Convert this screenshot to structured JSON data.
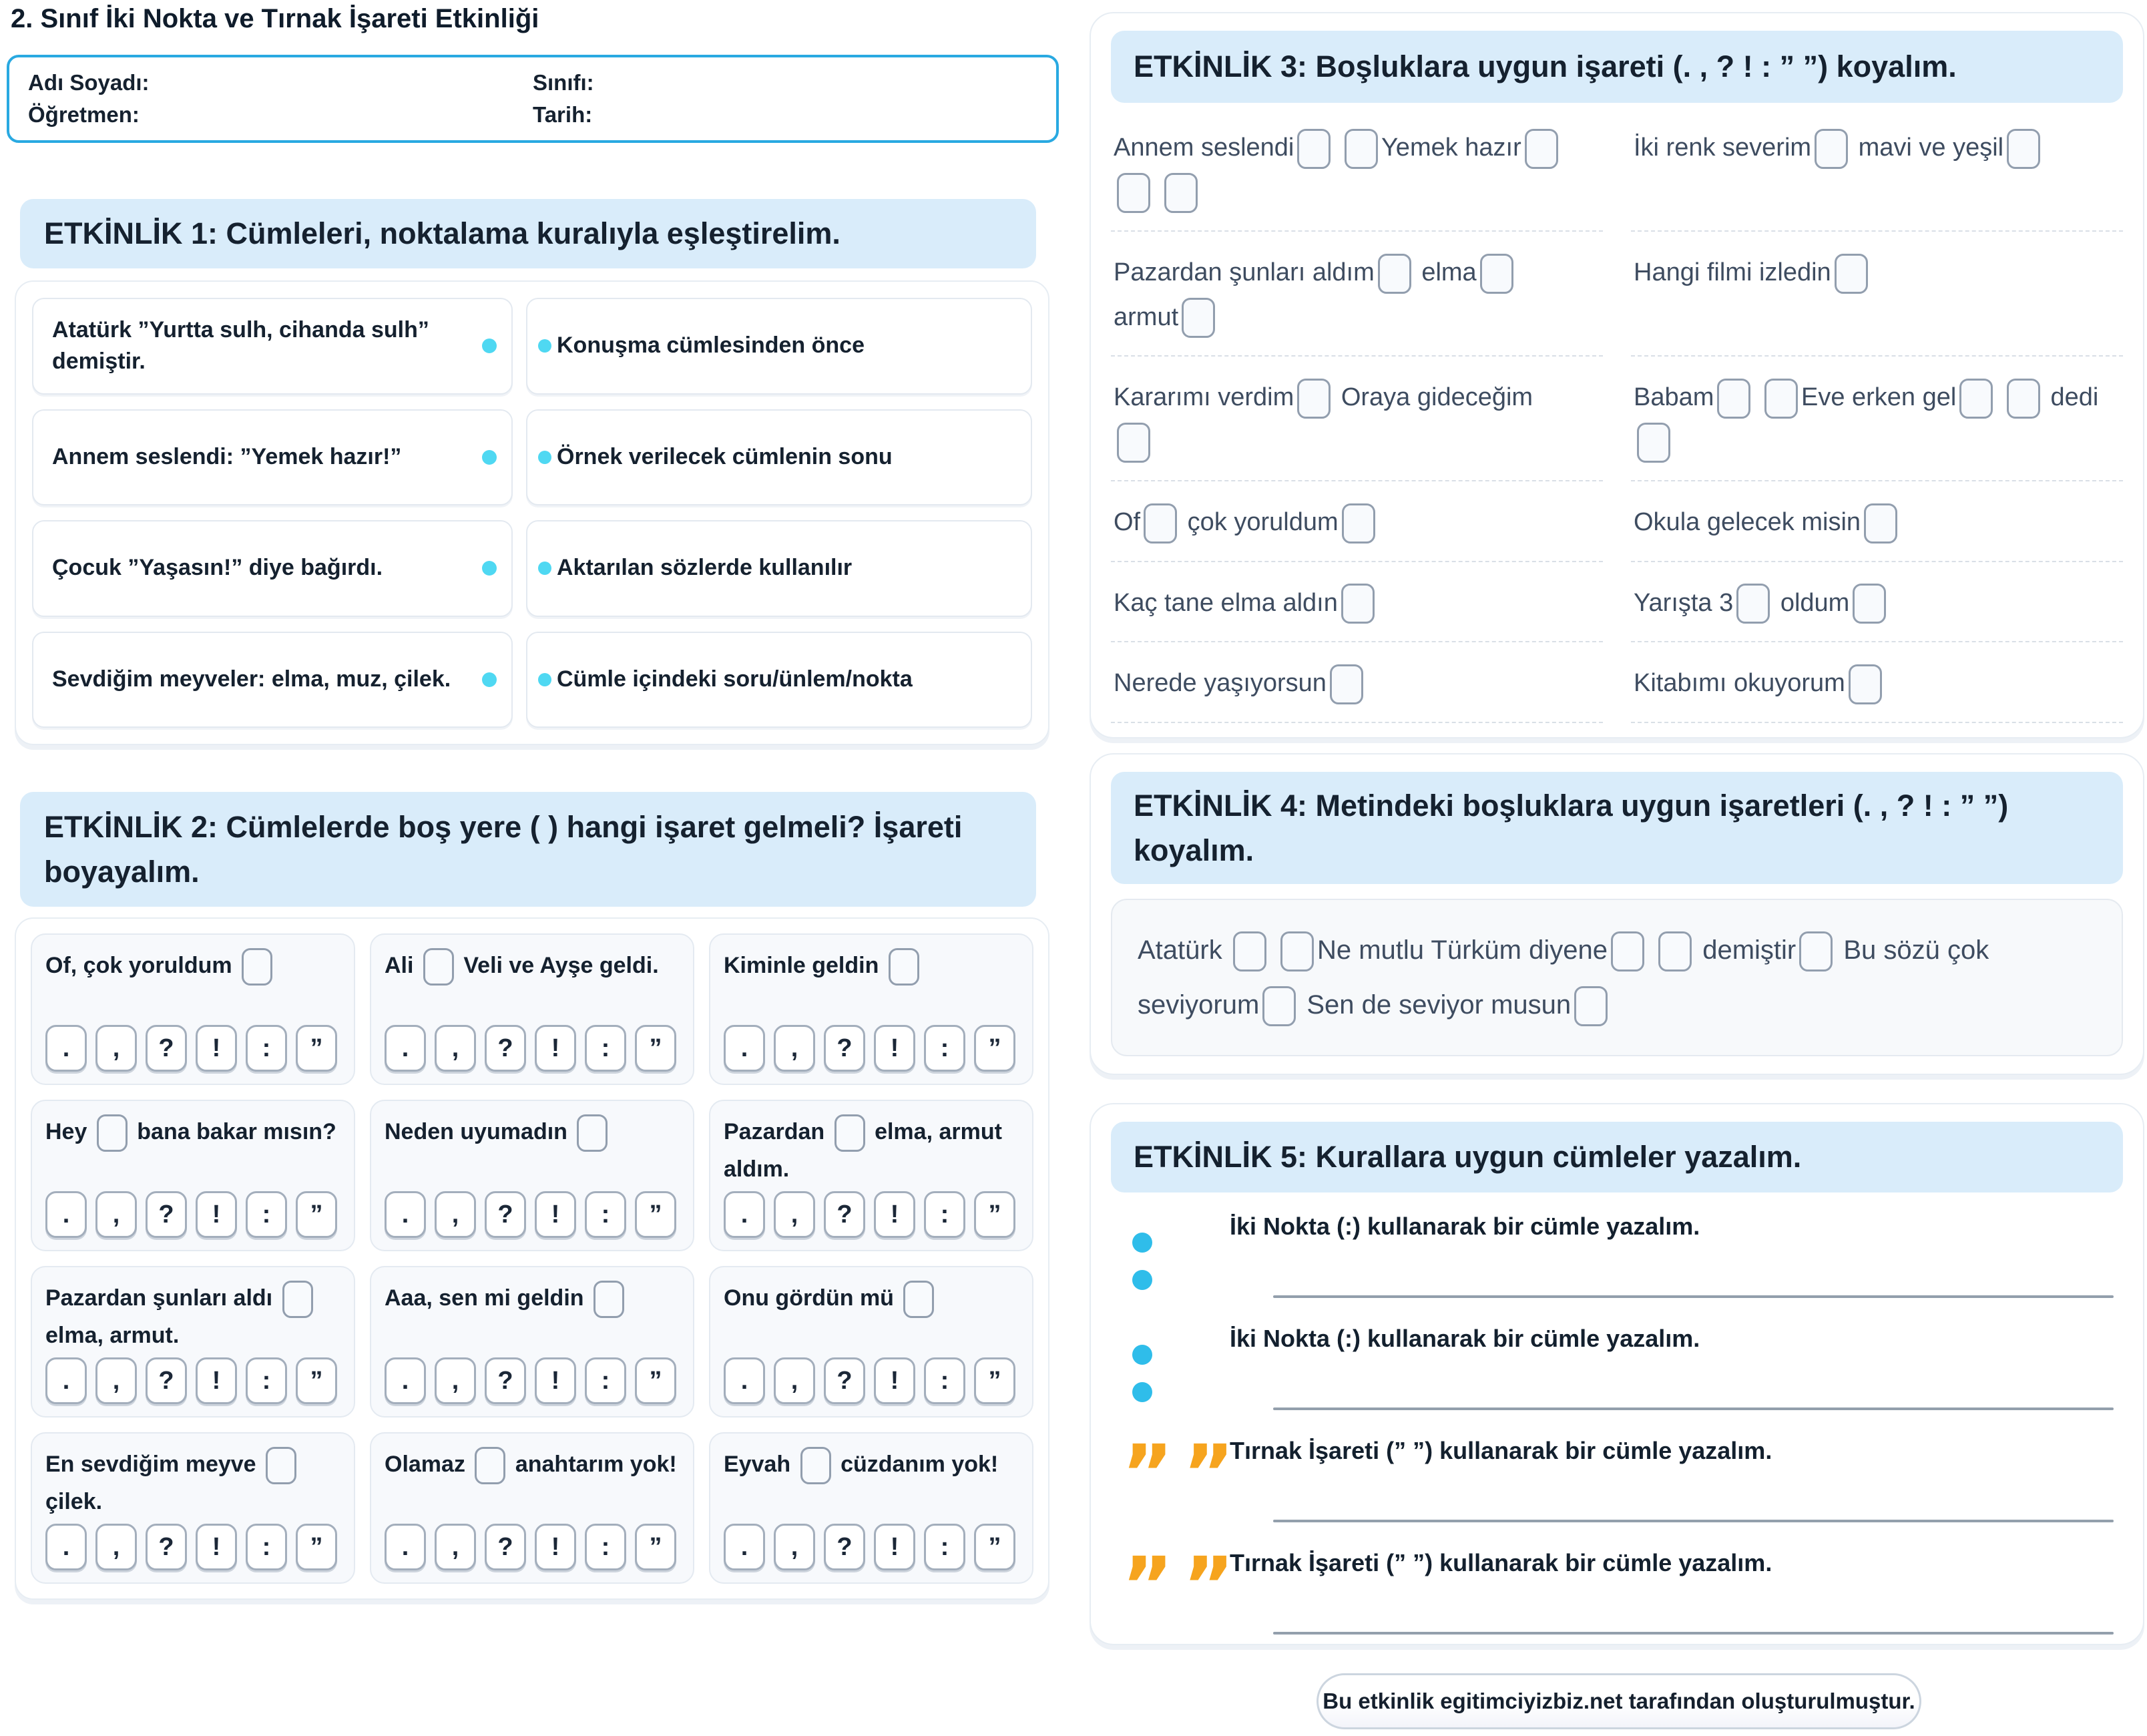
{
  "page": {
    "title": "2. Sınıf İki Nokta ve Tırnak İşareti Etkinliği"
  },
  "colors": {
    "header_bg": "#d9ecfa",
    "info_border": "#29a9e1",
    "match_dot_cyan": "#4fd8f2",
    "colon_dot_cyan": "#2fbdea",
    "quote_orange": "#f6a41e"
  },
  "info_box": {
    "fields": [
      {
        "label": "Adı Soyadı:"
      },
      {
        "label": "Sınıfı:"
      },
      {
        "label": "Öğretmen:"
      },
      {
        "label": "Tarih:"
      }
    ]
  },
  "activity1": {
    "header": "ETKİNLİK 1: Cümleleri, noktalama kuralıyla eşleştirelim.",
    "pairs": [
      {
        "left": "Atatürk ”Yurtta sulh, cihanda sulh” demiştir.",
        "right": "Konuşma cümlesinden önce"
      },
      {
        "left": "Annem seslendi: ”Yemek hazır!”",
        "right": "Örnek verilecek cümlenin sonu"
      },
      {
        "left": "Çocuk ”Yaşasın!” diye bağırdı.",
        "right": "Aktarılan sözlerde kullanılır"
      },
      {
        "left": "Sevdiğim meyveler: elma, muz, çilek.",
        "right": "Cümle içindeki soru/ünlem/nokta"
      }
    ]
  },
  "activity2": {
    "header": "ETKİNLİK 2: Cümlelerde boş yere ( ) hangi işaret gelmeli? İşareti boyayalım.",
    "options": [
      ".",
      ",",
      "?",
      "!",
      ":",
      "”"
    ],
    "cards": [
      {
        "segments": [
          {
            "t": "Of, çok yoruldum "
          },
          {
            "b": 1
          }
        ]
      },
      {
        "segments": [
          {
            "t": "Ali "
          },
          {
            "b": 1
          },
          {
            "t": " Veli ve Ayşe geldi."
          }
        ]
      },
      {
        "segments": [
          {
            "t": "Kiminle geldin "
          },
          {
            "b": 1
          }
        ]
      },
      {
        "segments": [
          {
            "t": "Hey "
          },
          {
            "b": 1
          },
          {
            "t": " bana bakar mısın?"
          }
        ]
      },
      {
        "segments": [
          {
            "t": "Neden uyumadın "
          },
          {
            "b": 1
          }
        ]
      },
      {
        "segments": [
          {
            "t": "Pazardan "
          },
          {
            "b": 1
          },
          {
            "t": " elma, armut aldım."
          }
        ]
      },
      {
        "segments": [
          {
            "t": "Pazardan şunları aldı "
          },
          {
            "b": 1
          },
          {
            "t": " elma, armut."
          }
        ]
      },
      {
        "segments": [
          {
            "t": "Aaa, sen mi geldin "
          },
          {
            "b": 1
          }
        ]
      },
      {
        "segments": [
          {
            "t": "Onu gördün mü "
          },
          {
            "b": 1
          }
        ]
      },
      {
        "segments": [
          {
            "t": "En sevdiğim meyve "
          },
          {
            "b": 1
          },
          {
            "t": " çilek."
          }
        ]
      },
      {
        "segments": [
          {
            "t": "Olamaz "
          },
          {
            "b": 1
          },
          {
            "t": " anahtarım yok!"
          }
        ]
      },
      {
        "segments": [
          {
            "t": "Eyvah "
          },
          {
            "b": 1
          },
          {
            "t": " cüzdanım yok!"
          }
        ]
      }
    ]
  },
  "activity3": {
    "header": "ETKİNLİK 3: Boşluklara uygun işareti (. , ? ! : ” ”) koyalım.",
    "rows": [
      {
        "left": [
          {
            "t": "Annem seslendi"
          },
          {
            "b": 1
          },
          {
            "t": " "
          },
          {
            "b": 1
          },
          {
            "t": "Yemek hazır"
          },
          {
            "b": 1
          },
          {
            "n": 1
          },
          {
            "b": 1
          },
          {
            "t": " "
          },
          {
            "b": 1
          }
        ],
        "right": [
          {
            "t": "İki renk severim"
          },
          {
            "b": 1
          },
          {
            "t": " mavi ve yeşil"
          },
          {
            "b": 1
          }
        ]
      },
      {
        "left": [
          {
            "t": "Pazardan şunları aldım"
          },
          {
            "b": 1
          },
          {
            "t": " elma"
          },
          {
            "b": 1
          },
          {
            "n": 1
          },
          {
            "t": "armut"
          },
          {
            "b": 1
          }
        ],
        "right": [
          {
            "t": "Hangi filmi izledin"
          },
          {
            "b": 1
          }
        ]
      },
      {
        "left": [
          {
            "t": "Kararımı verdim"
          },
          {
            "b": 1
          },
          {
            "t": " Oraya gideceğim"
          },
          {
            "n": 1
          },
          {
            "b": 1
          }
        ],
        "right": [
          {
            "t": "Babam"
          },
          {
            "b": 1
          },
          {
            "t": " "
          },
          {
            "b": 1
          },
          {
            "t": "Eve erken gel"
          },
          {
            "b": 1
          },
          {
            "t": " "
          },
          {
            "b": 1
          },
          {
            "t": " dedi"
          },
          {
            "n": 1
          },
          {
            "b": 1
          }
        ]
      },
      {
        "left": [
          {
            "t": "Of"
          },
          {
            "b": 1
          },
          {
            "t": " çok yoruldum"
          },
          {
            "b": 1
          }
        ],
        "right": [
          {
            "t": "Okula gelecek misin"
          },
          {
            "b": 1
          }
        ]
      },
      {
        "left": [
          {
            "t": "Kaç tane elma aldın"
          },
          {
            "b": 1
          }
        ],
        "right": [
          {
            "t": "Yarışta 3"
          },
          {
            "b": 1
          },
          {
            "t": " oldum"
          },
          {
            "b": 1
          }
        ]
      },
      {
        "left": [
          {
            "t": "Nerede yaşıyorsun"
          },
          {
            "b": 1
          }
        ],
        "right": [
          {
            "t": "Kitabımı okuyorum"
          },
          {
            "b": 1
          }
        ]
      }
    ]
  },
  "activity4": {
    "header": "ETKİNLİK 4: Metindeki boşluklara uygun işaretleri (. , ? ! : ” ”) koyalım.",
    "segments": [
      {
        "t": "Atatürk "
      },
      {
        "b": 1
      },
      {
        "t": " "
      },
      {
        "b": 1
      },
      {
        "t": "Ne mutlu Türküm diyene"
      },
      {
        "b": 1
      },
      {
        "t": " "
      },
      {
        "b": 1
      },
      {
        "t": " demiştir"
      },
      {
        "b": 1
      },
      {
        "t": " Bu sözü çok"
      },
      {
        "n": 1
      },
      {
        "t": "seviyorum"
      },
      {
        "b": 1
      },
      {
        "t": " Sen de seviyor musun"
      },
      {
        "b": 1
      }
    ]
  },
  "activity5": {
    "header": "ETKİNLİK 5: Kurallara uygun cümleler yazalım.",
    "quote_glyphs": "””",
    "tasks": [
      {
        "icon": "colon",
        "label": "İki Nokta (:) kullanarak bir cümle yazalım."
      },
      {
        "icon": "colon",
        "label": "İki Nokta (:) kullanarak bir cümle yazalım."
      },
      {
        "icon": "quotes",
        "label": "Tırnak İşareti (” ”) kullanarak bir cümle yazalım."
      },
      {
        "icon": "quotes",
        "label": "Tırnak İşareti (” ”) kullanarak bir cümle yazalım."
      }
    ]
  },
  "footer": {
    "text": "Bu etkinlik egitimciyizbiz.net tarafından oluşturulmuştur."
  }
}
